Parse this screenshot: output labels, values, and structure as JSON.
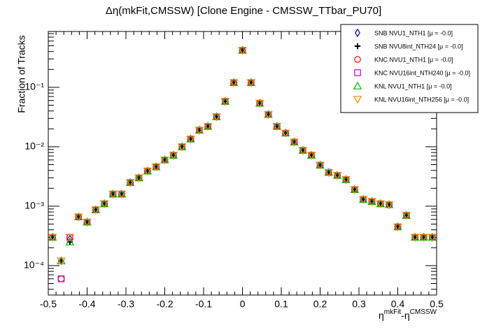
{
  "chart_data": {
    "type": "scatter",
    "title": "Δη(mkFit,CMSSW) [Clone Engine - CMSSW_TTbar_PU70]",
    "ylabel": "Fraction of Tracks",
    "xlabel_parts": [
      "η",
      "mkFit",
      "-η",
      "CMSSW"
    ],
    "log_y": true,
    "xlim": [
      -0.5,
      0.5
    ],
    "xticks": [
      -0.5,
      -0.4,
      -0.3,
      -0.2,
      -0.1,
      0,
      0.1,
      0.2,
      0.3,
      0.4,
      0.5
    ],
    "ylim": [
      3.2e-05,
      0.87
    ],
    "yticks": [
      {
        "value": 0.0001,
        "label": "10⁻⁴"
      },
      {
        "value": 0.001,
        "label": "10⁻³"
      },
      {
        "value": 0.01,
        "label": "10⁻²"
      },
      {
        "value": 0.1,
        "label": "10⁻¹"
      }
    ],
    "legend_position": "upper right",
    "x": [
      -0.4889,
      -0.4667,
      -0.4444,
      -0.4222,
      -0.4,
      -0.3778,
      -0.3556,
      -0.3333,
      -0.3111,
      -0.2889,
      -0.2667,
      -0.2444,
      -0.2222,
      -0.2,
      -0.1778,
      -0.1556,
      -0.1333,
      -0.1111,
      -0.0889,
      -0.0667,
      -0.0444,
      -0.0222,
      0,
      0.0222,
      0.0444,
      0.0667,
      0.0889,
      0.1111,
      0.1333,
      0.1556,
      0.1778,
      0.2,
      0.2222,
      0.2444,
      0.2667,
      0.2889,
      0.3111,
      0.3333,
      0.3556,
      0.3778,
      0.4,
      0.4222,
      0.4444,
      0.4667,
      0.4889
    ],
    "series": [
      {
        "name": "SNB NVU1_NTH1 [μ = -0.0]",
        "color": "#0000cc",
        "marker": "diamond",
        "values": [
          0.0003,
          0.00012,
          0.00028,
          0.00066,
          0.00054,
          0.00087,
          0.0011,
          0.0016,
          0.0016,
          0.0025,
          0.003,
          0.0039,
          0.0046,
          0.006,
          0.0072,
          0.01,
          0.0135,
          0.019,
          0.022,
          0.032,
          0.058,
          0.12,
          0.42,
          0.12,
          0.054,
          0.035,
          0.022,
          0.017,
          0.012,
          0.0087,
          0.0072,
          0.0049,
          0.0037,
          0.0033,
          0.0028,
          0.0019,
          0.0013,
          0.0012,
          0.0011,
          0.00106,
          0.00045,
          0.0007,
          0.0003,
          0.0003,
          0.0003
        ]
      },
      {
        "name": "SNB NVU8int_NTH24 [μ = -0.0]",
        "color": "#000000",
        "marker": "cross",
        "values": [
          0.0003,
          0.00012,
          0.00025,
          0.00066,
          0.00054,
          0.00087,
          0.0011,
          0.0016,
          0.0016,
          0.0025,
          0.003,
          0.0039,
          0.0046,
          0.006,
          0.0072,
          0.01,
          0.0135,
          0.019,
          0.022,
          0.032,
          0.058,
          0.12,
          0.42,
          0.12,
          0.054,
          0.035,
          0.022,
          0.017,
          0.012,
          0.0087,
          0.0072,
          0.0049,
          0.0037,
          0.0033,
          0.0028,
          0.0019,
          0.0013,
          0.0012,
          0.0011,
          0.00106,
          0.00045,
          0.0007,
          0.0003,
          0.0003,
          0.0003
        ]
      },
      {
        "name": "KNC NVU1_NTH1 [μ = -0.0]",
        "color": "#ff0000",
        "marker": "circle",
        "values": [
          0.0003,
          6e-05,
          0.0003,
          0.00066,
          0.00054,
          0.00087,
          0.0011,
          0.0016,
          0.0016,
          0.0025,
          0.003,
          0.0039,
          0.0046,
          0.006,
          0.0072,
          0.01,
          0.0135,
          0.019,
          0.022,
          0.032,
          0.058,
          0.12,
          0.42,
          0.12,
          0.054,
          0.035,
          0.022,
          0.017,
          0.012,
          0.0087,
          0.0072,
          0.0049,
          0.0037,
          0.0033,
          0.0028,
          0.0019,
          0.0013,
          0.0012,
          0.0011,
          0.00106,
          0.00045,
          0.0007,
          0.0003,
          0.0003,
          0.0003
        ]
      },
      {
        "name": "KNC NVU16int_NTH240 [μ = -0.0]",
        "color": "#cc00cc",
        "marker": "square",
        "values": [
          0.0003,
          6e-05,
          0.0003,
          0.00066,
          0.00054,
          0.00087,
          0.0011,
          0.0016,
          0.0016,
          0.0025,
          0.003,
          0.0039,
          0.0046,
          0.006,
          0.0072,
          0.01,
          0.0135,
          0.019,
          0.022,
          0.032,
          0.058,
          0.12,
          0.42,
          0.12,
          0.054,
          0.035,
          0.022,
          0.017,
          0.012,
          0.0087,
          0.0072,
          0.0049,
          0.0037,
          0.0033,
          0.0028,
          0.0019,
          0.0013,
          0.0012,
          0.0011,
          0.00106,
          0.00045,
          0.0007,
          0.0003,
          0.0003,
          0.0003
        ]
      },
      {
        "name": "KNL NVU1_NTH1 [μ = -0.0]",
        "color": "#00bb00",
        "marker": "triangle",
        "values": [
          0.0003,
          0.00012,
          0.00025,
          0.00066,
          0.00054,
          0.00087,
          0.0011,
          0.0016,
          0.0016,
          0.0025,
          0.003,
          0.0039,
          0.0046,
          0.006,
          0.0072,
          0.01,
          0.0135,
          0.019,
          0.022,
          0.032,
          0.058,
          0.12,
          0.42,
          0.12,
          0.054,
          0.035,
          0.022,
          0.017,
          0.012,
          0.0087,
          0.0072,
          0.0049,
          0.0037,
          0.0033,
          0.0028,
          0.0019,
          0.0013,
          0.0012,
          0.0011,
          0.00106,
          0.00045,
          0.0007,
          0.0003,
          0.0003,
          0.0003
        ]
      },
      {
        "name": "KNL NVU16int_NTH256 [μ = -0.0]",
        "color": "#ff8800",
        "marker": "triangle-down",
        "values": [
          0.0003,
          0.00012,
          0.0003,
          0.00066,
          0.00054,
          0.00087,
          0.0011,
          0.0016,
          0.0016,
          0.0025,
          0.003,
          0.0039,
          0.0046,
          0.006,
          0.0072,
          0.01,
          0.0135,
          0.019,
          0.022,
          0.032,
          0.058,
          0.12,
          0.42,
          0.12,
          0.054,
          0.035,
          0.022,
          0.017,
          0.012,
          0.0087,
          0.0072,
          0.0049,
          0.0037,
          0.0033,
          0.0028,
          0.0019,
          0.0013,
          0.0012,
          0.0011,
          0.00106,
          0.00045,
          0.0007,
          0.0003,
          0.0003,
          0.0003
        ]
      }
    ]
  }
}
